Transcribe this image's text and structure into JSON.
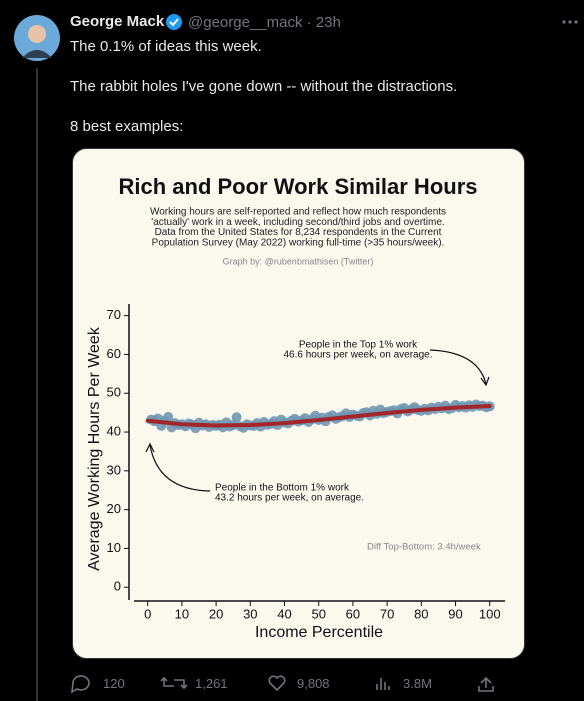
{
  "tweet": {
    "name": "George Mack",
    "meta": "@george__mack · 23h",
    "text": [
      "The 0.1% of ideas this week.",
      "The rabbit holes I've gone down -- without the distractions.",
      "8 best examples:"
    ],
    "stats": {
      "replies": "120",
      "retweets": "1,261",
      "likes": "9,808",
      "views": "3.8M"
    }
  },
  "chart_data": {
    "type": "scatter",
    "title": "Rich and Poor Work Similar Hours",
    "subtitle": [
      "Working hours are self-reported and reflect how much respondents",
      "'actually' work in a week, including second/third jobs and overtime.",
      "Data from the United States for 8,234 respondents in the Current",
      "Population Survey (May 2022) working full-time (>35 hours/week)."
    ],
    "credit": "Graph by: @rubenbmathisen (Twitter)",
    "xlabel": "Income Percentile",
    "ylabel": "Average Working Hours Per Week",
    "annotations": [
      "People in the Top 1% work",
      "46.6 hours per week, on average.",
      "People in the Bottom 1% work",
      "43.2 hours per week, on average.",
      "Diff Top-Bottom: 3.4h/week"
    ],
    "color": "#7097b2",
    "trend_color": "#a3262b",
    "x": [
      1,
      2,
      3,
      4,
      5,
      6,
      7,
      8,
      9,
      10,
      11,
      12,
      13,
      14,
      15,
      16,
      17,
      18,
      19,
      20,
      21,
      22,
      23,
      24,
      25,
      26,
      27,
      28,
      29,
      30,
      31,
      32,
      33,
      34,
      35,
      36,
      37,
      38,
      39,
      40,
      41,
      42,
      43,
      44,
      45,
      46,
      47,
      48,
      49,
      50,
      51,
      52,
      53,
      54,
      55,
      56,
      57,
      58,
      59,
      60,
      61,
      62,
      63,
      64,
      65,
      66,
      67,
      68,
      69,
      70,
      71,
      72,
      73,
      74,
      75,
      76,
      77,
      78,
      79,
      80,
      81,
      82,
      83,
      84,
      85,
      86,
      87,
      88,
      89,
      90,
      91,
      92,
      93,
      94,
      95,
      96,
      97,
      98,
      99,
      100
    ],
    "values": [
      43.2,
      42.8,
      43.5,
      41.6,
      42.9,
      43.9,
      41.2,
      42.3,
      41.8,
      42.0,
      41.5,
      42.2,
      41.9,
      41.0,
      42.4,
      41.7,
      42.0,
      41.3,
      41.8,
      41.6,
      41.9,
      41.2,
      42.5,
      41.4,
      41.8,
      43.8,
      41.5,
      41.1,
      42.0,
      41.7,
      41.6,
      42.3,
      41.4,
      42.6,
      41.9,
      42.1,
      42.8,
      41.8,
      43.2,
      42.5,
      42.2,
      42.9,
      43.4,
      42.7,
      43.0,
      43.6,
      42.6,
      43.3,
      44.2,
      43.1,
      43.7,
      42.8,
      43.9,
      44.3,
      43.4,
      43.8,
      44.1,
      44.8,
      43.9,
      44.5,
      44.2,
      44.0,
      44.9,
      45.1,
      44.3,
      45.5,
      44.7,
      45.8,
      44.9,
      45.2,
      45.4,
      45.6,
      44.8,
      45.9,
      46.2,
      45.3,
      45.8,
      46.4,
      45.7,
      45.5,
      46.0,
      45.6,
      46.3,
      45.9,
      46.5,
      46.1,
      46.8,
      45.9,
      46.2,
      47.0,
      46.4,
      46.7,
      46.3,
      46.9,
      46.5,
      47.1,
      46.7,
      46.8,
      46.4,
      46.6
    ],
    "trend": {
      "x": [
        0,
        10,
        20,
        30,
        40,
        50,
        60,
        70,
        80,
        90,
        100
      ],
      "values": [
        42.9,
        42.0,
        41.7,
        41.8,
        42.3,
        43.1,
        44.0,
        44.9,
        45.7,
        46.3,
        46.7
      ]
    },
    "xlim": [
      -4,
      103
    ],
    "ylim": [
      -2,
      73
    ],
    "xticks": [
      0,
      10,
      20,
      30,
      40,
      50,
      60,
      70,
      80,
      90,
      100
    ],
    "yticks": [
      0,
      10,
      20,
      30,
      40,
      50,
      60,
      70
    ]
  }
}
